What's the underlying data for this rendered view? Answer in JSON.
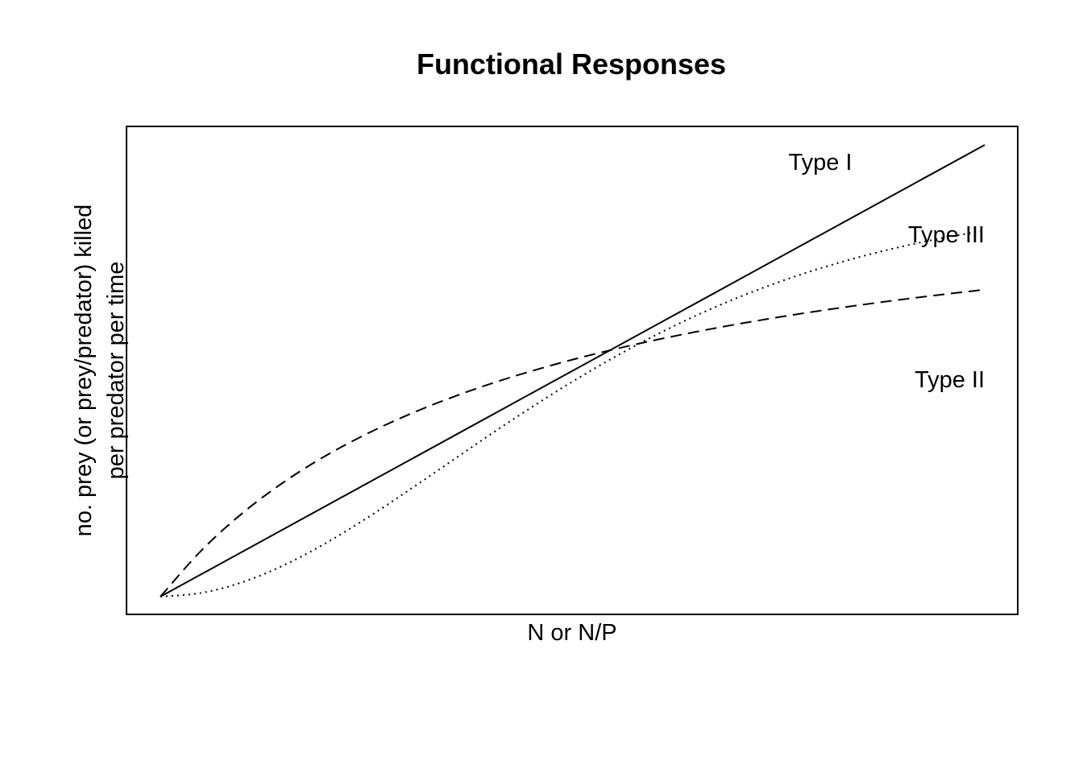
{
  "chart_data": {
    "type": "line",
    "title": "Functional Responses",
    "xlabel": "N or N/P",
    "ylabel_line1": "no. prey (or prey/predator) killed",
    "ylabel_line2": "per predator per time",
    "xlim": [
      0,
      1
    ],
    "ylim": [
      0,
      1
    ],
    "grid": false,
    "axes_ticks": false,
    "series": [
      {
        "name": "Type I",
        "style": "solid",
        "x": [
          0,
          1
        ],
        "y": [
          0,
          1
        ]
      },
      {
        "name": "Type II",
        "style": "dashed",
        "x": [
          0,
          0.05,
          0.1,
          0.15,
          0.2,
          0.25,
          0.3,
          0.35,
          0.4,
          0.45,
          0.5,
          0.55,
          0.6,
          0.65,
          0.7,
          0.75,
          0.8,
          0.85,
          0.9,
          0.95,
          1
        ],
        "y": [
          0,
          0.1027,
          0.1855,
          0.2539,
          0.3113,
          0.36,
          0.4021,
          0.4387,
          0.4709,
          0.4993,
          0.5247,
          0.5474,
          0.5679,
          0.5864,
          0.6033,
          0.6187,
          0.6329,
          0.6459,
          0.658,
          0.6692,
          0.6796
        ]
      },
      {
        "name": "Type III",
        "style": "dotted",
        "x": [
          0,
          0.05,
          0.1,
          0.15,
          0.2,
          0.25,
          0.3,
          0.35,
          0.4,
          0.45,
          0.5,
          0.55,
          0.6,
          0.65,
          0.7,
          0.75,
          0.8,
          0.85,
          0.9,
          0.95,
          1
        ],
        "y": [
          0,
          0.0084,
          0.0323,
          0.0697,
          0.1177,
          0.1734,
          0.2338,
          0.2962,
          0.3585,
          0.4189,
          0.4761,
          0.5294,
          0.5782,
          0.6223,
          0.6616,
          0.6963,
          0.7266,
          0.7528,
          0.7752,
          0.7943,
          0.8104
        ]
      }
    ],
    "annotations": [
      {
        "text": "Type I",
        "series": "Type I"
      },
      {
        "text": "Type III",
        "series": "Type III"
      },
      {
        "text": "Type II",
        "series": "Type II"
      }
    ]
  }
}
